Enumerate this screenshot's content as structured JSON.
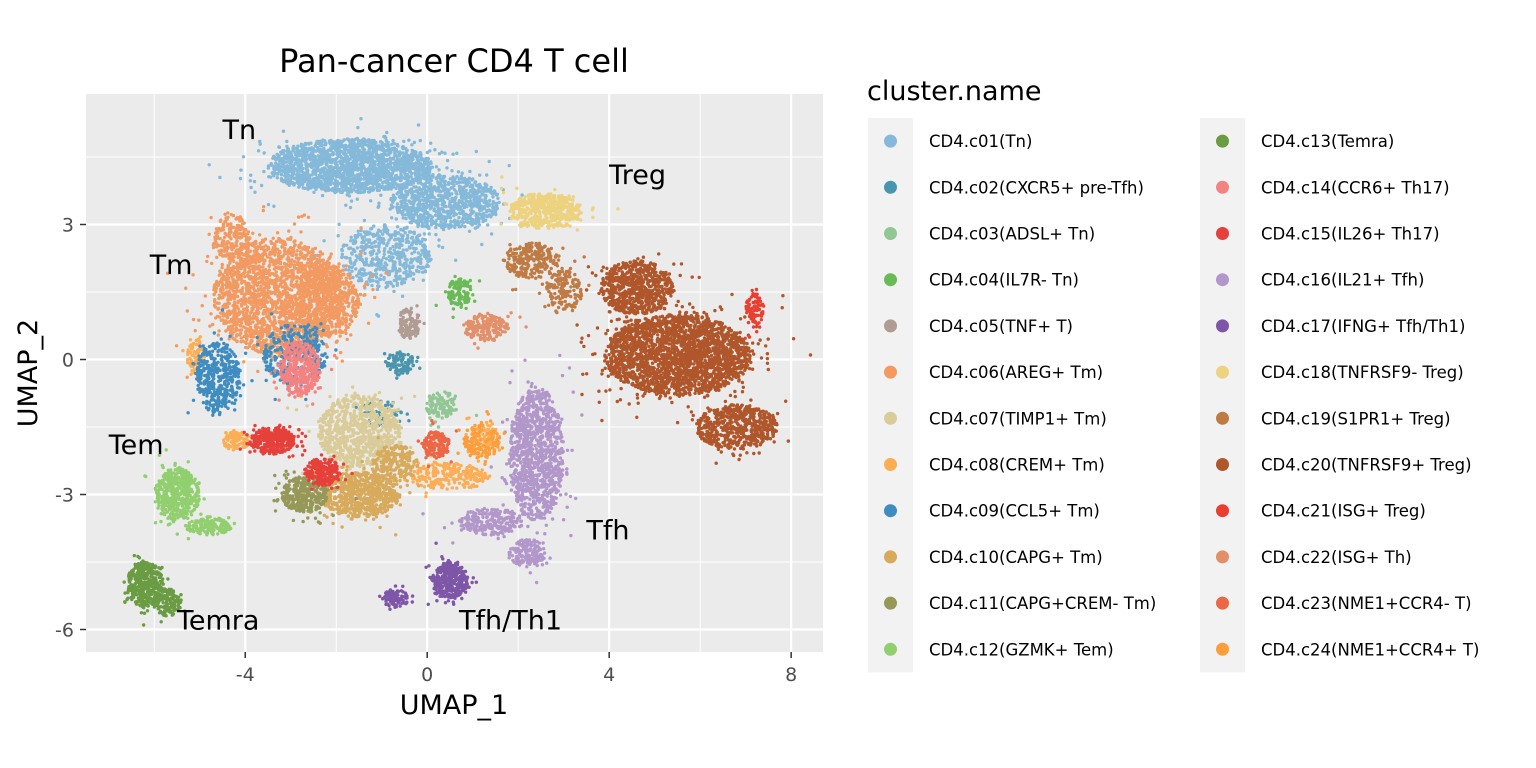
{
  "chart_data": {
    "type": "scatter",
    "title": "Pan-cancer CD4 T cell",
    "xlabel": "UMAP_1",
    "ylabel": "UMAP_2",
    "xlim": [
      -7.5,
      8.7
    ],
    "ylim": [
      -6.5,
      5.9
    ],
    "x_ticks": [
      -4,
      0,
      4,
      8
    ],
    "y_ticks": [
      -6,
      -3,
      0,
      3
    ],
    "grid": true,
    "legend_title": "cluster.name",
    "legend_position": "right",
    "series": [
      {
        "name": "CD4.c01(Tn)",
        "color": "#84b9d9",
        "clusters": [
          [
            -1.7,
            4.3,
            1.8,
            0.6,
            1800
          ],
          [
            0.4,
            3.5,
            1.2,
            0.6,
            900
          ],
          [
            -0.9,
            2.3,
            1.0,
            0.7,
            500
          ]
        ]
      },
      {
        "name": "CD4.c02(CXCR5+ pre-Tfh)",
        "color": "#4a95ae",
        "clusters": [
          [
            -0.6,
            -0.1,
            0.35,
            0.25,
            90
          ],
          [
            -1.0,
            -1.2,
            0.5,
            0.3,
            60
          ]
        ]
      },
      {
        "name": "CD4.c03(ADSL+ Tn)",
        "color": "#92c795",
        "clusters": [
          [
            0.3,
            -1.0,
            0.35,
            0.3,
            120
          ]
        ]
      },
      {
        "name": "CD4.c04(IL7R- Tn)",
        "color": "#6aba56",
        "clusters": [
          [
            0.7,
            1.5,
            0.25,
            0.3,
            120
          ]
        ]
      },
      {
        "name": "CD4.c05(TNF+ T)",
        "color": "#b19c93",
        "clusters": [
          [
            -0.4,
            0.8,
            0.25,
            0.35,
            110
          ]
        ]
      },
      {
        "name": "CD4.c06(AREG+ Tm)",
        "color": "#f29a61",
        "clusters": [
          [
            -3.3,
            1.4,
            1.4,
            1.3,
            2000
          ],
          [
            -2.2,
            1.3,
            0.7,
            0.8,
            600
          ],
          [
            -4.3,
            2.7,
            0.4,
            0.5,
            200
          ]
        ]
      },
      {
        "name": "CD4.c07(TIMP1+ Tm)",
        "color": "#dacc98",
        "clusters": [
          [
            -1.5,
            -1.6,
            0.9,
            0.8,
            800
          ]
        ]
      },
      {
        "name": "CD4.c08(CREM+ Tm)",
        "color": "#fdae55",
        "clusters": [
          [
            -4.2,
            -1.8,
            0.3,
            0.2,
            90
          ],
          [
            0.5,
            -2.6,
            0.9,
            0.3,
            220
          ],
          [
            -5.1,
            0.1,
            0.2,
            0.4,
            80
          ],
          [
            1.2,
            -1.8,
            0.4,
            0.4,
            100
          ]
        ]
      },
      {
        "name": "CD4.c09(CCL5+ Tm)",
        "color": "#3f8dc0",
        "clusters": [
          [
            -4.6,
            -0.4,
            0.5,
            0.8,
            400
          ],
          [
            -2.9,
            0.1,
            0.7,
            0.7,
            300
          ]
        ]
      },
      {
        "name": "CD4.c10(CAPG+ Tm)",
        "color": "#d7aa5c",
        "clusters": [
          [
            -1.5,
            -3.0,
            0.9,
            0.5,
            700
          ],
          [
            -0.7,
            -2.3,
            0.5,
            0.4,
            200
          ]
        ]
      },
      {
        "name": "CD4.c11(CAPG+CREM- Tm)",
        "color": "#969858",
        "clusters": [
          [
            -2.7,
            -3.0,
            0.5,
            0.4,
            350
          ]
        ]
      },
      {
        "name": "CD4.c12(GZMK+ Tem)",
        "color": "#91cf6f",
        "clusters": [
          [
            -5.5,
            -3.0,
            0.5,
            0.6,
            500
          ],
          [
            -4.8,
            -3.7,
            0.5,
            0.2,
            150
          ]
        ]
      },
      {
        "name": "CD4.c13(Temra)",
        "color": "#6a9c43",
        "clusters": [
          [
            -6.2,
            -5.0,
            0.4,
            0.5,
            400
          ],
          [
            -5.7,
            -5.4,
            0.3,
            0.3,
            150
          ]
        ]
      },
      {
        "name": "CD4.c14(CCR6+ Th17)",
        "color": "#f38282",
        "clusters": [
          [
            -2.8,
            -0.2,
            0.45,
            0.6,
            350
          ]
        ]
      },
      {
        "name": "CD4.c15(IL26+ Th17)",
        "color": "#e6403b",
        "clusters": [
          [
            -3.4,
            -1.8,
            0.5,
            0.3,
            350
          ],
          [
            -2.3,
            -2.5,
            0.4,
            0.3,
            200
          ]
        ]
      },
      {
        "name": "CD4.c16(IL21+ Tfh)",
        "color": "#b297ca",
        "clusters": [
          [
            2.4,
            -2.1,
            0.6,
            1.5,
            1100
          ],
          [
            1.4,
            -3.6,
            0.7,
            0.3,
            250
          ],
          [
            2.2,
            -4.3,
            0.4,
            0.3,
            150
          ]
        ]
      },
      {
        "name": "CD4.c17(IFNG+ Tfh/Th1)",
        "color": "#7e56a7",
        "clusters": [
          [
            0.5,
            -4.9,
            0.4,
            0.4,
            350
          ],
          [
            -0.7,
            -5.3,
            0.3,
            0.2,
            90
          ]
        ]
      },
      {
        "name": "CD4.c18(TNFRSF9- Treg)",
        "color": "#edd27f",
        "clusters": [
          [
            2.6,
            3.3,
            0.8,
            0.4,
            500
          ]
        ]
      },
      {
        "name": "CD4.c19(S1PR1+ Treg)",
        "color": "#bf7b43",
        "clusters": [
          [
            2.3,
            2.2,
            0.6,
            0.4,
            250
          ],
          [
            3.0,
            1.5,
            0.4,
            0.5,
            150
          ]
        ]
      },
      {
        "name": "CD4.c20(TNFRSF9+ Treg)",
        "color": "#b0562b",
        "clusters": [
          [
            5.5,
            0.1,
            1.6,
            0.9,
            2400
          ],
          [
            4.6,
            1.6,
            0.8,
            0.6,
            700
          ],
          [
            6.8,
            -1.5,
            0.9,
            0.5,
            600
          ]
        ]
      },
      {
        "name": "CD4.c21(ISG+ Treg)",
        "color": "#ea3f30",
        "clusters": [
          [
            7.2,
            1.1,
            0.2,
            0.4,
            90
          ]
        ]
      },
      {
        "name": "CD4.c22(ISG+ Th)",
        "color": "#e3906a",
        "clusters": [
          [
            1.3,
            0.7,
            0.5,
            0.3,
            180
          ]
        ]
      },
      {
        "name": "CD4.c23(NME1+CCR4- T)",
        "color": "#ed6645",
        "clusters": [
          [
            0.2,
            -1.9,
            0.3,
            0.3,
            150
          ]
        ]
      },
      {
        "name": "CD4.c24(NME1+CCR4+ T)",
        "color": "#fd9e3a",
        "clusters": [
          [
            1.2,
            -1.8,
            0.4,
            0.4,
            120
          ]
        ]
      }
    ],
    "annotations": [
      {
        "text": "Tn",
        "x": -4.5,
        "y": 4.9
      },
      {
        "text": "Treg",
        "x": 4.0,
        "y": 3.9
      },
      {
        "text": "Tm",
        "x": -6.1,
        "y": 1.9
      },
      {
        "text": "Tem",
        "x": -7.0,
        "y": -2.1
      },
      {
        "text": "Tfh",
        "x": 3.5,
        "y": -4.0
      },
      {
        "text": "Temra",
        "x": -5.5,
        "y": -6.0
      },
      {
        "text": "Tfh/Th1",
        "x": 0.7,
        "y": -6.0
      }
    ]
  }
}
